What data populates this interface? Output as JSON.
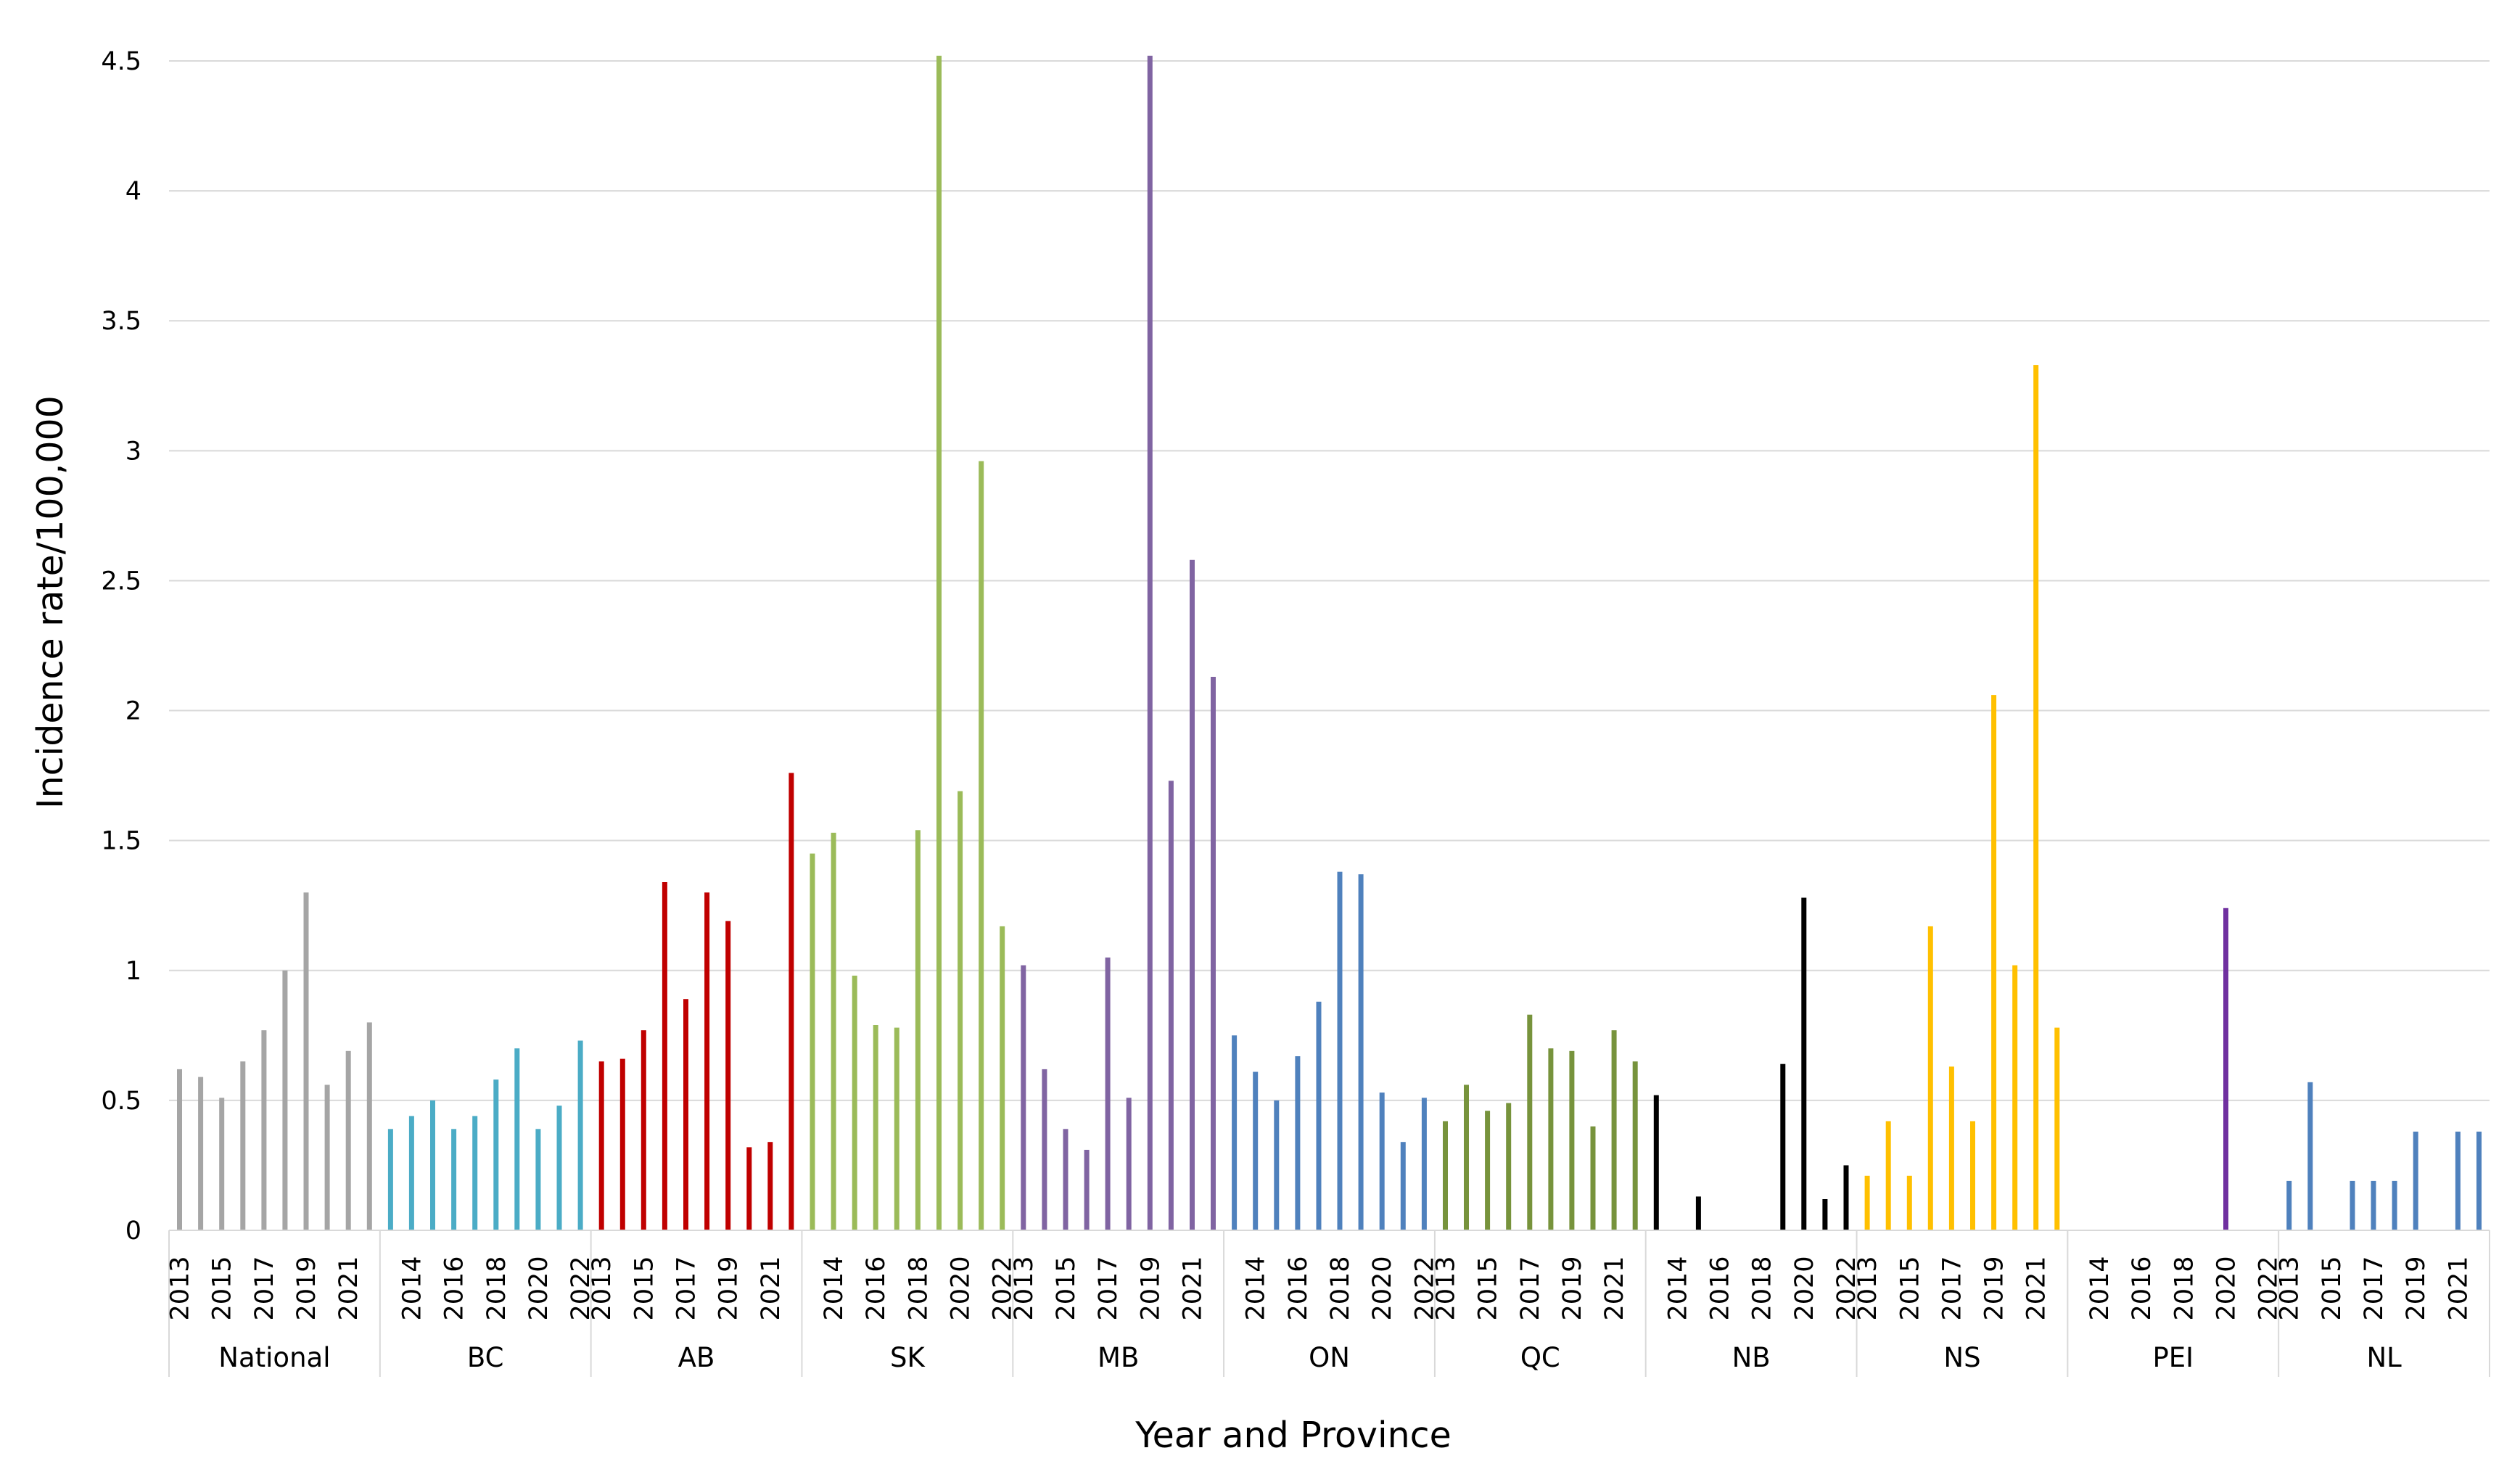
{
  "chart_data": {
    "type": "bar",
    "xlabel": "Year and Province",
    "ylabel": "Incidence rate/100,000",
    "ylim": [
      0,
      4.5
    ],
    "yticks": [
      "0",
      "0.5",
      "1",
      "1.5",
      "2",
      "2.5",
      "3",
      "3.5",
      "4",
      "4.5"
    ],
    "grid": true,
    "legend": "none",
    "years": [
      "2013",
      "2014",
      "2015",
      "2016",
      "2017",
      "2018",
      "2019",
      "2020",
      "2021",
      "2022"
    ],
    "groups": [
      {
        "name": "National",
        "color": "#a5a5a5",
        "tick_labels": [
          "2013",
          "2015",
          "2017",
          "2019",
          "2021"
        ],
        "values": [
          0.62,
          0.59,
          0.51,
          0.65,
          0.77,
          1.0,
          1.3,
          0.56,
          0.69,
          0.8
        ]
      },
      {
        "name": "BC",
        "color": "#4bacc6",
        "tick_labels": [
          "2014",
          "2016",
          "2018",
          "2020",
          "2022"
        ],
        "values": [
          0.39,
          0.44,
          0.5,
          0.39,
          0.44,
          0.58,
          0.7,
          0.39,
          0.48,
          0.73
        ]
      },
      {
        "name": "AB",
        "color": "#c00000",
        "tick_labels": [
          "2013",
          "2015",
          "2017",
          "2019",
          "2021"
        ],
        "values": [
          0.65,
          0.66,
          0.77,
          1.34,
          0.89,
          1.3,
          1.19,
          0.32,
          0.34,
          1.76
        ]
      },
      {
        "name": "SK",
        "color": "#9bbb59",
        "tick_labels": [
          "2014",
          "2016",
          "2018",
          "2020",
          "2022"
        ],
        "values": [
          1.45,
          1.53,
          0.98,
          0.79,
          0.78,
          1.54,
          4.52,
          1.69,
          2.96,
          1.17
        ]
      },
      {
        "name": "MB",
        "color": "#8064a2",
        "tick_labels": [
          "2013",
          "2015",
          "2017",
          "2019",
          "2021"
        ],
        "values": [
          1.02,
          0.62,
          0.39,
          0.31,
          1.05,
          0.51,
          4.52,
          1.73,
          2.58,
          2.13
        ]
      },
      {
        "name": "ON",
        "color": "#4f81bd",
        "tick_labels": [
          "2014",
          "2016",
          "2018",
          "2020",
          "2022"
        ],
        "values": [
          0.75,
          0.61,
          0.5,
          0.67,
          0.88,
          1.38,
          1.37,
          0.53,
          0.34,
          0.51
        ]
      },
      {
        "name": "QC",
        "color": "#77933c",
        "tick_labels": [
          "2013",
          "2015",
          "2017",
          "2019",
          "2021"
        ],
        "values": [
          0.42,
          0.56,
          0.46,
          0.49,
          0.83,
          0.7,
          0.69,
          0.4,
          0.77,
          0.65
        ]
      },
      {
        "name": "NB",
        "color": "#000000",
        "tick_labels": [
          "2014",
          "2016",
          "2018",
          "2020",
          "2022"
        ],
        "values": [
          0.52,
          0.0,
          0.13,
          0.0,
          0.0,
          0.0,
          0.64,
          1.28,
          0.12,
          0.25
        ]
      },
      {
        "name": "NS",
        "color": "#ffc000",
        "tick_labels": [
          "2013",
          "2015",
          "2017",
          "2019",
          "2021"
        ],
        "values": [
          0.21,
          0.42,
          0.21,
          1.17,
          0.63,
          0.42,
          2.06,
          1.02,
          3.33,
          0.78
        ]
      },
      {
        "name": "PEI",
        "color": "#7030a0",
        "tick_labels": [
          "2014",
          "2016",
          "2018",
          "2020",
          "2022"
        ],
        "values": [
          0.0,
          0.0,
          0.0,
          0.0,
          0.0,
          0.0,
          0.0,
          1.24,
          0.0,
          0.0
        ]
      },
      {
        "name": "NL",
        "color": "#4f81bd",
        "tick_labels": [
          "2013",
          "2015",
          "2017",
          "2019",
          "2021"
        ],
        "values": [
          0.19,
          0.57,
          0.0,
          0.19,
          0.19,
          0.19,
          0.38,
          0.0,
          0.38,
          0.38
        ]
      }
    ]
  }
}
